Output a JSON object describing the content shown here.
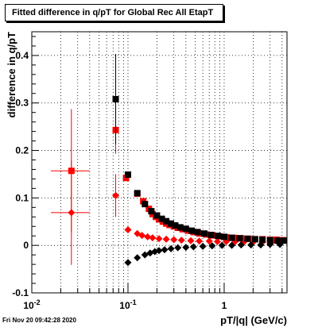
{
  "title": "Fitted difference in q/pT for Global Rec All EtapT",
  "footer": "Fri Nov 20 09:42:28 2020",
  "chart_data": {
    "type": "scatter",
    "title": "Fitted difference in q/pT for Global Rec All EtapT",
    "xlabel": "pT/|q| (GeV/c)",
    "ylabel": "difference in q/pT",
    "x_scale": "log",
    "xlim": [
      0.01,
      4.5
    ],
    "ylim": [
      -0.1,
      0.45
    ],
    "x_ticks": [
      "10^-2",
      "10^-1",
      "1"
    ],
    "y_ticks": [
      "-0.1",
      "0",
      "0.1",
      "0.2",
      "0.3",
      "0.4"
    ],
    "grid": true,
    "series": [
      {
        "color": "#ff0000",
        "marker": "square",
        "points": [
          {
            "x": 0.0258,
            "y": 0.157,
            "xerr": [
              0.0158,
              0.0398
            ],
            "yerr": 0.13
          },
          {
            "x": 0.0745,
            "y": 0.243,
            "yerr": 0.05
          },
          {
            "x": 0.0955,
            "y": 0.142
          },
          {
            "x": 0.125,
            "y": 0.109
          },
          {
            "x": 0.144,
            "y": 0.093
          },
          {
            "x": 0.165,
            "y": 0.077
          },
          {
            "x": 0.18,
            "y": 0.066
          },
          {
            "x": 0.195,
            "y": 0.06
          },
          {
            "x": 0.21,
            "y": 0.055
          },
          {
            "x": 0.23,
            "y": 0.05
          },
          {
            "x": 0.25,
            "y": 0.046
          },
          {
            "x": 0.27,
            "y": 0.043
          },
          {
            "x": 0.3,
            "y": 0.04
          },
          {
            "x": 0.33,
            "y": 0.037
          },
          {
            "x": 0.37,
            "y": 0.034
          },
          {
            "x": 0.42,
            "y": 0.031
          },
          {
            "x": 0.48,
            "y": 0.028
          },
          {
            "x": 0.55,
            "y": 0.025
          },
          {
            "x": 0.65,
            "y": 0.023
          },
          {
            "x": 0.75,
            "y": 0.021
          },
          {
            "x": 0.9,
            "y": 0.019
          },
          {
            "x": 1.05,
            "y": 0.017
          },
          {
            "x": 1.25,
            "y": 0.016
          },
          {
            "x": 1.5,
            "y": 0.015
          },
          {
            "x": 1.8,
            "y": 0.014
          },
          {
            "x": 2.1,
            "y": 0.013
          },
          {
            "x": 2.5,
            "y": 0.013
          },
          {
            "x": 3.0,
            "y": 0.012
          },
          {
            "x": 3.5,
            "y": 0.012
          },
          {
            "x": 4.1,
            "y": 0.011
          }
        ]
      },
      {
        "color": "#ff0000",
        "marker": "diamond",
        "points": [
          {
            "x": 0.0258,
            "y": 0.069,
            "xerr": [
              0.0158,
              0.0398
            ],
            "yerr": 0.11
          },
          {
            "x": 0.0745,
            "y": 0.105,
            "yerr": 0.045
          },
          {
            "x": 0.1,
            "y": 0.033
          },
          {
            "x": 0.125,
            "y": 0.025
          },
          {
            "x": 0.14,
            "y": 0.021
          },
          {
            "x": 0.16,
            "y": 0.018
          },
          {
            "x": 0.18,
            "y": 0.016
          },
          {
            "x": 0.21,
            "y": 0.014
          },
          {
            "x": 0.25,
            "y": 0.013
          },
          {
            "x": 0.3,
            "y": 0.012
          },
          {
            "x": 0.36,
            "y": 0.011
          },
          {
            "x": 0.45,
            "y": 0.01
          },
          {
            "x": 0.55,
            "y": 0.009
          },
          {
            "x": 0.7,
            "y": 0.009
          },
          {
            "x": 0.85,
            "y": 0.008
          },
          {
            "x": 1.05,
            "y": 0.008
          },
          {
            "x": 1.3,
            "y": 0.008
          },
          {
            "x": 1.6,
            "y": 0.007
          },
          {
            "x": 2.0,
            "y": 0.007
          },
          {
            "x": 2.5,
            "y": 0.007
          },
          {
            "x": 3.1,
            "y": 0.006
          },
          {
            "x": 3.8,
            "y": 0.006
          }
        ]
      },
      {
        "color": "#000000",
        "marker": "square",
        "points": [
          {
            "x": 0.0745,
            "y": 0.308,
            "yerr": 0.095
          },
          {
            "x": 0.1,
            "y": 0.149
          },
          {
            "x": 0.125,
            "y": 0.11
          },
          {
            "x": 0.15,
            "y": 0.087
          },
          {
            "x": 0.175,
            "y": 0.072
          },
          {
            "x": 0.2,
            "y": 0.063
          },
          {
            "x": 0.225,
            "y": 0.056
          },
          {
            "x": 0.25,
            "y": 0.051
          },
          {
            "x": 0.28,
            "y": 0.046
          },
          {
            "x": 0.31,
            "y": 0.042
          },
          {
            "x": 0.35,
            "y": 0.038
          },
          {
            "x": 0.4,
            "y": 0.035
          },
          {
            "x": 0.46,
            "y": 0.031
          },
          {
            "x": 0.53,
            "y": 0.028
          },
          {
            "x": 0.62,
            "y": 0.025
          },
          {
            "x": 0.73,
            "y": 0.022
          },
          {
            "x": 0.86,
            "y": 0.02
          },
          {
            "x": 1.0,
            "y": 0.018
          },
          {
            "x": 1.2,
            "y": 0.016
          },
          {
            "x": 1.45,
            "y": 0.015
          },
          {
            "x": 1.75,
            "y": 0.014
          },
          {
            "x": 2.1,
            "y": 0.013
          },
          {
            "x": 2.5,
            "y": 0.012
          },
          {
            "x": 3.0,
            "y": 0.011
          },
          {
            "x": 3.6,
            "y": 0.01
          },
          {
            "x": 4.2,
            "y": 0.01
          }
        ]
      },
      {
        "color": "#000000",
        "marker": "diamond",
        "points": [
          {
            "x": 0.1,
            "y": -0.036
          },
          {
            "x": 0.125,
            "y": -0.026
          },
          {
            "x": 0.15,
            "y": -0.02
          },
          {
            "x": 0.17,
            "y": -0.016
          },
          {
            "x": 0.19,
            "y": -0.013
          },
          {
            "x": 0.21,
            "y": -0.011
          },
          {
            "x": 0.24,
            "y": -0.009
          },
          {
            "x": 0.28,
            "y": -0.007
          },
          {
            "x": 0.33,
            "y": -0.005
          },
          {
            "x": 0.4,
            "y": -0.004
          },
          {
            "x": 0.48,
            "y": -0.003
          },
          {
            "x": 0.6,
            "y": -0.002
          },
          {
            "x": 0.75,
            "y": -0.001
          },
          {
            "x": 0.95,
            "y": 0.0
          },
          {
            "x": 1.2,
            "y": 0.0
          },
          {
            "x": 1.5,
            "y": 0.001
          },
          {
            "x": 1.9,
            "y": 0.001
          },
          {
            "x": 2.4,
            "y": 0.001
          },
          {
            "x": 3.0,
            "y": 0.002
          },
          {
            "x": 3.8,
            "y": 0.002
          }
        ]
      }
    ]
  }
}
